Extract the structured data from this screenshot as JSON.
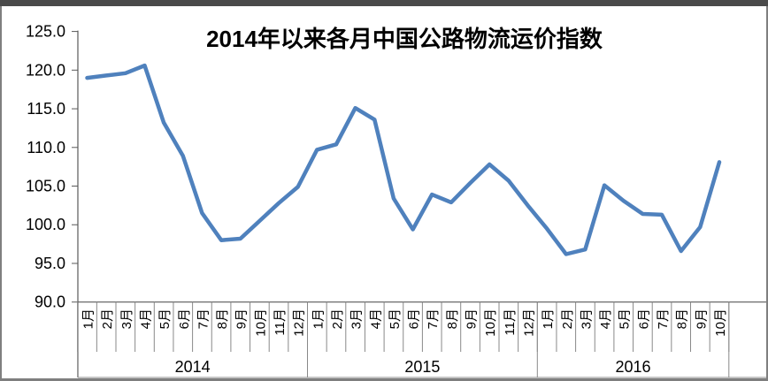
{
  "chart_data": {
    "type": "line",
    "title": "2014年以来各月中国公路物流运价指数",
    "xlabel": "",
    "ylabel": "",
    "ylim": [
      90,
      125
    ],
    "ytick_step": 5,
    "ytick_decimals": 1,
    "grid": false,
    "legend_position": "none",
    "series_name": "中国公路物流运价指数",
    "years": [
      {
        "label": "2014",
        "categories": [
          "1月",
          "2月",
          "3月",
          "4月",
          "5月",
          "6月",
          "7月",
          "8月",
          "9月",
          "10月",
          "11月",
          "12月"
        ],
        "values": [
          119.0,
          119.3,
          119.6,
          120.6,
          113.2,
          108.9,
          101.5,
          98.0,
          98.2,
          100.5,
          102.8,
          104.9
        ]
      },
      {
        "label": "2015",
        "categories": [
          "1月",
          "2月",
          "3月",
          "4月",
          "5月",
          "6月",
          "7月",
          "8月",
          "9月",
          "10月",
          "11月",
          "12月"
        ],
        "values": [
          109.7,
          110.4,
          115.1,
          113.6,
          103.4,
          99.4,
          103.9,
          102.9,
          105.4,
          107.8,
          105.7,
          102.5
        ]
      },
      {
        "label": "2016",
        "categories": [
          "1月",
          "2月",
          "3月",
          "4月",
          "5月",
          "6月",
          "7月",
          "8月",
          "9月",
          "10月"
        ],
        "values": [
          99.5,
          96.2,
          96.8,
          105.1,
          103.1,
          101.4,
          101.3,
          96.6,
          99.7,
          108.1
        ]
      }
    ]
  },
  "colors": {
    "line": "#4F81BD",
    "axis": "#595959",
    "table_line": "#898989",
    "text": "#000000",
    "top_border": "#4a4a4a",
    "outer_border": "#7f7f7f",
    "background": "#ffffff"
  }
}
